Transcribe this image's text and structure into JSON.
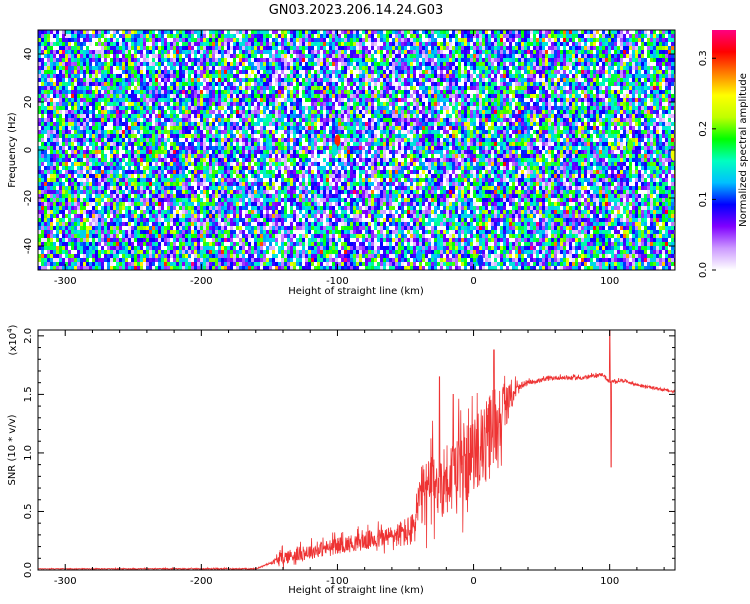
{
  "chart_data": [
    {
      "type": "heatmap",
      "title": "GN03.2023.206.14.24.G03",
      "xlabel": "Height of straight line (km)",
      "ylabel": "Frequency (Hz)",
      "xlim": [
        -320,
        148
      ],
      "ylim": [
        -50,
        50
      ],
      "xticks": [
        -300,
        -200,
        -100,
        0,
        100
      ],
      "yticks": [
        -40,
        -20,
        0,
        20,
        40
      ],
      "colorbar": {
        "label": "Normalized spectral amplitude",
        "range": [
          0.0,
          0.34
        ],
        "ticks": [
          0.0,
          0.1,
          0.2,
          0.3
        ],
        "colors": [
          "#ffffff",
          "#cc99ff",
          "#8000ff",
          "#0000ff",
          "#00bfff",
          "#00ffc0",
          "#00ff00",
          "#c0ff00",
          "#ffff00",
          "#ff8000",
          "#ff0000",
          "#ff0080"
        ]
      },
      "hotspots": [
        {
          "x": -100,
          "y": 4,
          "amplitude": 0.3
        },
        {
          "x": -102,
          "y": 0,
          "amplitude": 0.14
        },
        {
          "x": 115,
          "y": 2,
          "amplitude": 0.2
        },
        {
          "x": 147,
          "y": -2,
          "amplitude": 0.24
        },
        {
          "x": -40,
          "y": -44,
          "amplitude": 0.12
        },
        {
          "x": 5,
          "y": -46,
          "amplitude": 0.1
        }
      ]
    },
    {
      "type": "line",
      "xlabel": "Height of straight line (km)",
      "ylabel": "SNR (10 * v/v)",
      "yscale_label": "(x10^4)",
      "xlim": [
        -320,
        148
      ],
      "ylim": [
        0,
        2.05
      ],
      "xticks": [
        -300,
        -200,
        -100,
        0,
        100
      ],
      "yticks": [
        0.0,
        0.5,
        1.0,
        1.5,
        2.0
      ],
      "series": [
        {
          "color": "#ee3333",
          "profile": [
            [
              -320,
              0.01
            ],
            [
              -160,
              0.01
            ],
            [
              -140,
              0.1
            ],
            [
              -120,
              0.15
            ],
            [
              -100,
              0.2
            ],
            [
              -80,
              0.24
            ],
            [
              -60,
              0.28
            ],
            [
              -45,
              0.32
            ],
            [
              -40,
              0.55
            ],
            [
              -30,
              0.7
            ],
            [
              -20,
              0.75
            ],
            [
              -10,
              0.8
            ],
            [
              0,
              0.95
            ],
            [
              10,
              1.05
            ],
            [
              20,
              1.3
            ],
            [
              30,
              1.52
            ],
            [
              40,
              1.6
            ],
            [
              60,
              1.64
            ],
            [
              80,
              1.64
            ],
            [
              95,
              1.67
            ],
            [
              100,
              1.6
            ],
            [
              110,
              1.62
            ],
            [
              120,
              1.58
            ],
            [
              148,
              1.52
            ]
          ],
          "noise": [
            [
              -320,
              0.005
            ],
            [
              -150,
              0.01
            ],
            [
              -140,
              0.12
            ],
            [
              -100,
              0.14
            ],
            [
              -60,
              0.18
            ],
            [
              -45,
              0.3
            ],
            [
              -40,
              0.55
            ],
            [
              -10,
              0.7
            ],
            [
              0,
              0.6
            ],
            [
              15,
              0.8
            ],
            [
              25,
              0.3
            ],
            [
              35,
              0.04
            ],
            [
              148,
              0.02
            ]
          ],
          "spikes": [
            {
              "x": 100,
              "y": 2.05
            },
            {
              "x": 101,
              "y": 0.88
            },
            {
              "x": 15,
              "y": 1.88
            },
            {
              "x": -25,
              "y": 1.65
            },
            {
              "x": -15,
              "y": 1.5
            }
          ]
        }
      ]
    }
  ]
}
